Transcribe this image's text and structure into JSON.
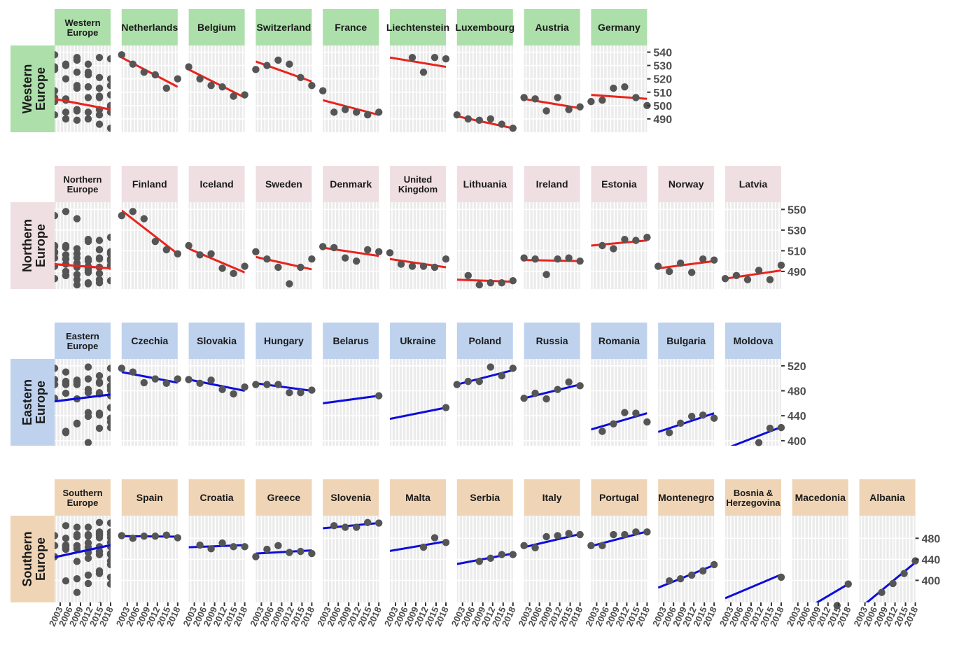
{
  "colors": {
    "Western Europe": "#acdfa9",
    "Northern Europe": "#efdfe3",
    "Eastern Europe": "#bed2ee",
    "Southern Europe": "#efd5b6",
    "decline": "#e8241d",
    "growth": "#0d0ddc",
    "points": "#555555",
    "panel": "#ebebeb"
  },
  "chart_data": {
    "type": "scatter",
    "title": "",
    "xticks": [
      "2003",
      "2006",
      "2009",
      "2012",
      "2015",
      "2018"
    ],
    "years": [
      2003,
      2006,
      2009,
      2012,
      2015,
      2018
    ],
    "regions": [
      {
        "name": "Western Europe",
        "label_lines": [
          "Western",
          "Europe"
        ],
        "ylim": [
          480,
          545
        ],
        "yticks": [
          540,
          530,
          520,
          510,
          500,
          490
        ],
        "trend": "decline",
        "panels": [
          {
            "title_lines": [
              "Western",
              "Europe"
            ],
            "values": [],
            "line": [
              505,
              497
            ]
          },
          {
            "title_lines": [
              "Netherlands"
            ],
            "values": [
              538,
              531,
              525,
              523,
              513,
              520
            ],
            "line": [
              536,
              514
            ]
          },
          {
            "title_lines": [
              "Belgium"
            ],
            "values": [
              529,
              520,
              515,
              514,
              507,
              508
            ],
            "line": [
              527,
              506
            ]
          },
          {
            "title_lines": [
              "Switzerland"
            ],
            "values": [
              527,
              530,
              534,
              531,
              521,
              515
            ],
            "line": [
              533,
              518
            ]
          },
          {
            "title_lines": [
              "France"
            ],
            "values": [
              511,
              495,
              497,
              495,
              493,
              495
            ],
            "line": [
              504,
              493
            ]
          },
          {
            "title_lines": [
              "Liechtenstein"
            ],
            "values": [
              536,
              525,
              536,
              535
            ],
            "line": [
              536,
              529
            ]
          },
          {
            "title_lines": [
              "Luxembourg"
            ],
            "values": [
              493,
              490,
              489,
              490,
              486,
              483
            ],
            "line": [
              492,
              483
            ]
          },
          {
            "title_lines": [
              "Austria"
            ],
            "values": [
              506,
              505,
              496,
              506,
              497,
              499
            ],
            "line": [
              505,
              498
            ]
          },
          {
            "title_lines": [
              "Germany"
            ],
            "values": [
              503,
              504,
              513,
              514,
              506,
              500
            ],
            "line": [
              508,
              505
            ]
          }
        ]
      },
      {
        "name": "Northern Europe",
        "label_lines": [
          "Northern",
          "Europe"
        ],
        "ylim": [
          473,
          557
        ],
        "yticks": [
          550,
          530,
          510,
          490
        ],
        "trend": "decline",
        "panels": [
          {
            "title_lines": [
              "Northern",
              "Europe"
            ],
            "values": [],
            "line": [
              497,
              493
            ]
          },
          {
            "title_lines": [
              "Finland"
            ],
            "values": [
              544,
              548,
              541,
              519,
              511,
              507
            ],
            "line": [
              549,
              507
            ]
          },
          {
            "title_lines": [
              "Iceland"
            ],
            "values": [
              515,
              506,
              507,
              493,
              488,
              495
            ],
            "line": [
              512,
              489
            ]
          },
          {
            "title_lines": [
              "Sweden"
            ],
            "values": [
              509,
              502,
              494,
              478,
              494,
              502
            ],
            "line": [
              504,
              492
            ]
          },
          {
            "title_lines": [
              "Denmark"
            ],
            "values": [
              514,
              513,
              503,
              500,
              511,
              509
            ],
            "line": [
              513,
              505
            ]
          },
          {
            "title_lines": [
              "United",
              "Kingdom"
            ],
            "values": [
              508,
              497,
              495,
              495,
              494,
              502
            ],
            "line": [
              502,
              494
            ]
          },
          {
            "title_lines": [
              "Lithuania"
            ],
            "values": [
              486,
              477,
              479,
              479,
              481
            ],
            "line": [
              482,
              480
            ]
          },
          {
            "title_lines": [
              "Ireland"
            ],
            "values": [
              503,
              502,
              487,
              502,
              503,
              500
            ],
            "line": [
              501,
              500
            ]
          },
          {
            "title_lines": [
              "Estonia"
            ],
            "values": [
              515,
              512,
              521,
              520,
              523
            ],
            "line": [
              515,
              520
            ]
          },
          {
            "title_lines": [
              "Norway"
            ],
            "values": [
              495,
              490,
              498,
              489,
              502,
              501
            ],
            "line": [
              493,
              500
            ]
          },
          {
            "title_lines": [
              "Latvia"
            ],
            "values": [
              483,
              486,
              482,
              491,
              482,
              496
            ],
            "line": [
              483,
              491
            ]
          }
        ]
      },
      {
        "name": "Eastern Europe",
        "label_lines": [
          "Eastern",
          "Europe"
        ],
        "ylim": [
          392,
          531
        ],
        "yticks": [
          520,
          480,
          440,
          400
        ],
        "trend": "growth",
        "panels": [
          {
            "title_lines": [
              "Eastern",
              "Europe"
            ],
            "values": [],
            "line": [
              463,
              474
            ]
          },
          {
            "title_lines": [
              "Czechia"
            ],
            "values": [
              516,
              510,
              493,
              499,
              492,
              499
            ],
            "line": [
              510,
              493
            ]
          },
          {
            "title_lines": [
              "Slovakia"
            ],
            "values": [
              498,
              492,
              497,
              482,
              475,
              486
            ],
            "line": [
              498,
              480
            ]
          },
          {
            "title_lines": [
              "Hungary"
            ],
            "values": [
              490,
              490,
              490,
              477,
              477,
              481
            ],
            "line": [
              492,
              480
            ]
          },
          {
            "title_lines": [
              "Belarus"
            ],
            "values": [
              472
            ],
            "line": [
              460,
              472
            ]
          },
          {
            "title_lines": [
              "Ukraine"
            ],
            "values": [
              453
            ],
            "line": [
              435,
              453
            ]
          },
          {
            "title_lines": [
              "Poland"
            ],
            "values": [
              490,
              495,
              495,
              518,
              504,
              516
            ],
            "line": [
              490,
              513
            ]
          },
          {
            "title_lines": [
              "Russia"
            ],
            "values": [
              468,
              476,
              467,
              482,
              494,
              488
            ],
            "line": [
              468,
              490
            ]
          },
          {
            "title_lines": [
              "Romania"
            ],
            "values": [
              415,
              427,
              445,
              444,
              430
            ],
            "line": [
              418,
              444
            ]
          },
          {
            "title_lines": [
              "Bulgaria"
            ],
            "values": [
              413,
              428,
              439,
              441,
              436
            ],
            "line": [
              414,
              444
            ]
          },
          {
            "title_lines": [
              "Moldova"
            ],
            "values": [
              397,
              420,
              421
            ],
            "line": [
              387,
              422
            ]
          }
        ]
      },
      {
        "name": "Southern Europe",
        "label_lines": [
          "Southern",
          "Europe"
        ],
        "ylim": [
          358,
          523
        ],
        "yticks": [
          480,
          440,
          400
        ],
        "trend": "growth",
        "panels": [
          {
            "title_lines": [
              "Southern",
              "Europe"
            ],
            "values": [],
            "line": [
              444,
              467
            ]
          },
          {
            "title_lines": [
              "Spain"
            ],
            "values": [
              485,
              480,
              484,
              484,
              486,
              481
            ],
            "line": [
              484,
              483
            ]
          },
          {
            "title_lines": [
              "Croatia"
            ],
            "values": [
              467,
              460,
              471,
              464,
              464
            ],
            "line": [
              463,
              467
            ]
          },
          {
            "title_lines": [
              "Greece"
            ],
            "values": [
              445,
              459,
              466,
              453,
              455,
              451
            ],
            "line": [
              451,
              457
            ]
          },
          {
            "title_lines": [
              "Slovenia"
            ],
            "values": [
              504,
              501,
              501,
              510,
              509
            ],
            "line": [
              499,
              509
            ]
          },
          {
            "title_lines": [
              "Malta"
            ],
            "values": [
              463,
              481,
              472
            ],
            "line": [
              456,
              474
            ]
          },
          {
            "title_lines": [
              "Serbia"
            ],
            "values": [
              436,
              442,
              449,
              449
            ],
            "line": [
              431,
              451
            ]
          },
          {
            "title_lines": [
              "Italy"
            ],
            "values": [
              466,
              462,
              483,
              485,
              489,
              487
            ],
            "line": [
              463,
              488
            ]
          },
          {
            "title_lines": [
              "Portugal"
            ],
            "values": [
              466,
              466,
              487,
              487,
              492,
              492
            ],
            "line": [
              465,
              493
            ]
          },
          {
            "title_lines": [
              "Montenegro"
            ],
            "values": [
              399,
              403,
              410,
              418,
              430
            ],
            "line": [
              386,
              429
            ]
          },
          {
            "title_lines": [
              "Bosnia &",
              "Herzegovina"
            ],
            "values": [
              406
            ],
            "line": [
              366,
              411
            ]
          },
          {
            "title_lines": [
              "Macedonia"
            ],
            "values": [
              352,
              393
            ],
            "line": [
              330,
              393
            ]
          },
          {
            "title_lines": [
              "Albania"
            ],
            "values": [
              377,
              394,
              413,
              437
            ],
            "line": [
              346,
              434
            ]
          }
        ]
      }
    ]
  }
}
